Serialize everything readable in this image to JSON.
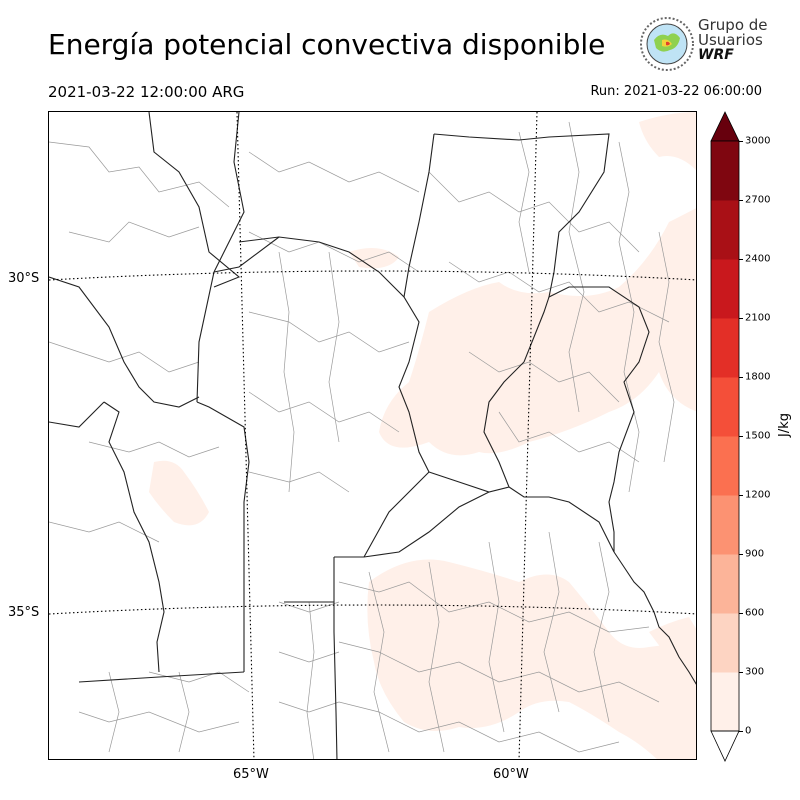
{
  "title": "Energía potencial convectiva disponible",
  "valid_time": "2021-03-22 12:00:00 ARG",
  "run_time": "Run: 2021-03-22 06:00:00",
  "logo": {
    "line1": "Grupo de",
    "line2": "Usuarios",
    "line3": "WRF"
  },
  "map": {
    "lat_labels": [
      "30°S",
      "35°S"
    ],
    "lon_labels": [
      "65°W",
      "60°W"
    ]
  },
  "colorbar": {
    "label": "J/kg",
    "ticks": [
      "3000",
      "2700",
      "2400",
      "2100",
      "1800",
      "1500",
      "1200",
      "900",
      "600",
      "300",
      "0"
    ],
    "colors": [
      "#fff0e9",
      "#fdd4c2",
      "#fcb499",
      "#fc9272",
      "#fb7050",
      "#f44f39",
      "#e32f27",
      "#c9181d",
      "#a91016",
      "#7f0610"
    ],
    "over_color": "#67000d",
    "under_color": "#ffffff"
  }
}
